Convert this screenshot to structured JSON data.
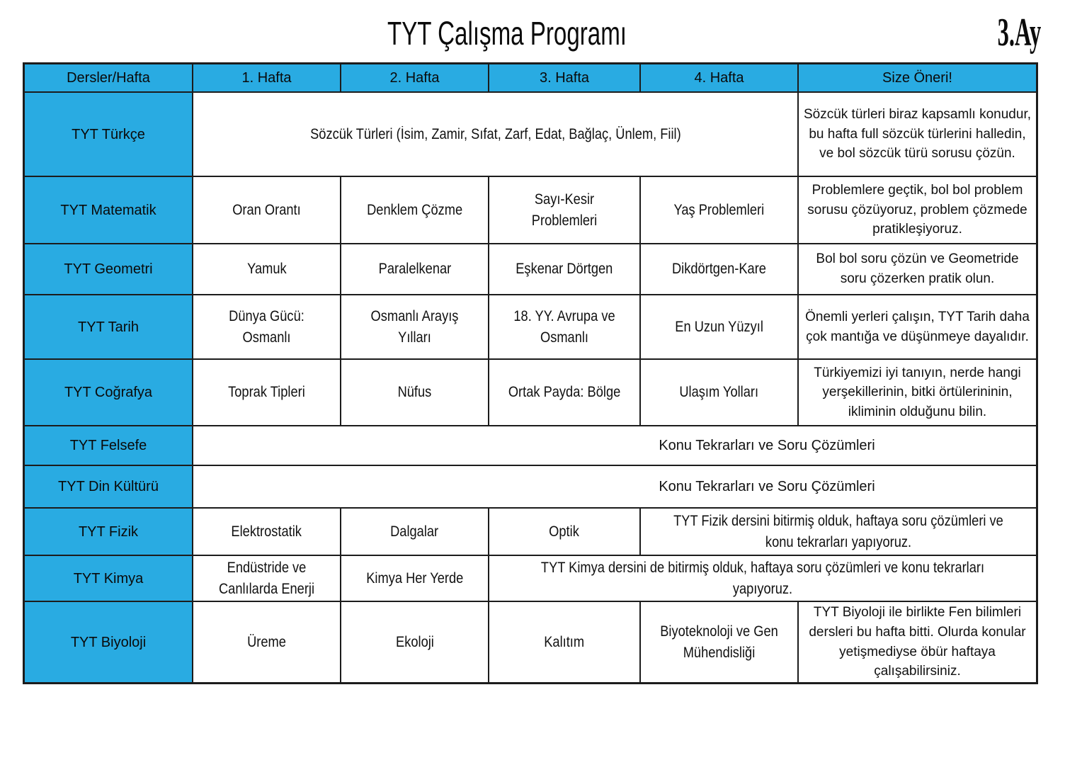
{
  "title": "TYT Çalışma Programı",
  "month_badge": "3.Ay",
  "colors": {
    "accent_cyan": "#29ABE2",
    "border": "#1c1c1c",
    "text": "#111111"
  },
  "table": {
    "headers": [
      "Dersler/Hafta",
      "1. Hafta",
      "2. Hafta",
      "3. Hafta",
      "4. Hafta",
      "Size Öneri!"
    ],
    "rows": [
      {
        "label": "TYT Türkçe",
        "weeks_merged": "Sözcük Türleri (İsim, Zamir, Sıfat, Zarf, Edat, Bağlaç, Ünlem, Fiil)",
        "oneri": "Sözcük türleri biraz kapsamlı konudur, bu hafta full sözcük türlerini halledin, ve bol sözcük türü sorusu çözün."
      },
      {
        "label": "TYT Matematik",
        "week1": "Oran Orantı",
        "week2": "Denklem Çözme",
        "week3": "Sayı-Kesir Problemleri",
        "week4": "Yaş Problemleri",
        "oneri": "Problemlere geçtik, bol bol problem sorusu çözüyoruz, problem çözmede pratikleşiyoruz."
      },
      {
        "label": "TYT Geometri",
        "week1": "Yamuk",
        "week2": "Paralelkenar",
        "week3": "Eşkenar Dörtgen",
        "week4": "Dikdörtgen-Kare",
        "oneri": "Bol bol soru çözün ve Geometride soru çözerken pratik olun."
      },
      {
        "label": "TYT Tarih",
        "week1": "Dünya Gücü: Osmanlı",
        "week2": "Osmanlı Arayış Yılları",
        "week3": "18. YY. Avrupa ve Osmanlı",
        "week4": "En Uzun Yüzyıl",
        "oneri": "Önemli yerleri çalışın, TYT Tarih daha çok mantığa ve düşünmeye dayalıdır."
      },
      {
        "label": "TYT Coğrafya",
        "week1": "Toprak Tipleri",
        "week2": "Nüfus",
        "week3": "Ortak Payda: Bölge",
        "week4": "Ulaşım Yolları",
        "oneri": "Türkiyemizi iyi tanıyın, nerde hangi yerşekillerinin, bitki örtülerininin, ikliminin olduğunu bilin."
      },
      {
        "label": "TYT Felsefe",
        "merged": "Konu Tekrarları ve Soru Çözümleri"
      },
      {
        "label": "TYT Din Kültürü",
        "merged": "Konu Tekrarları ve Soru Çözümleri"
      },
      {
        "label": "TYT Fizik",
        "week1": "Elektrostatik",
        "week2": "Dalgalar",
        "week3": "Optik",
        "merged": "TYT Fizik dersini bitirmiş olduk, haftaya soru çözümleri ve konu tekrarları yapıyoruz."
      },
      {
        "label": "TYT Kimya",
        "week1": "Endüstride ve Canlılarda Enerji",
        "week2": "Kimya Her Yerde",
        "merged": "TYT Kimya dersini de bitirmiş olduk, haftaya soru çözümleri ve konu tekrarları yapıyoruz."
      },
      {
        "label": "TYT Biyoloji",
        "week1": "Üreme",
        "week2": "Ekoloji",
        "week3": "Kalıtım",
        "week4": "Biyoteknoloji ve Gen Mühendisliği",
        "oneri": "TYT Biyoloji ile birlikte Fen bilimleri dersleri bu hafta bitti. Olurda konular yetişmediyse öbür haftaya çalışabilirsiniz."
      }
    ]
  }
}
